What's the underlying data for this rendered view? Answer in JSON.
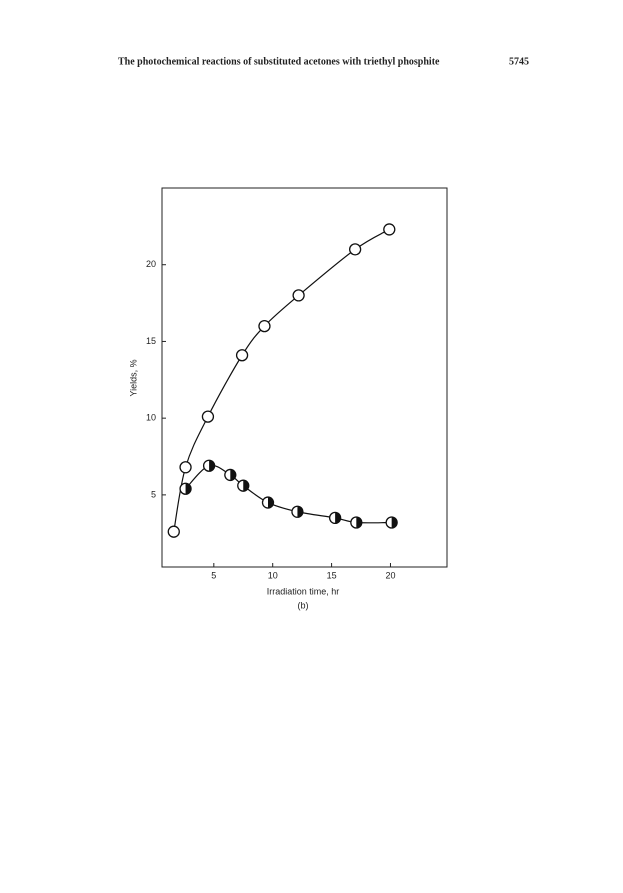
{
  "header": {
    "title": "The photochemical reactions of substituted acetones with triethyl phosphite",
    "page": "5745"
  },
  "chart_data": {
    "type": "line",
    "xlabel": "Irradiation time, hr",
    "ylabel": "Yields, %",
    "caption": "(b)",
    "xlim": [
      0.6,
      24.8
    ],
    "ylim": [
      0.3,
      25
    ],
    "xticks": [
      5,
      10,
      15,
      20
    ],
    "yticks": [
      5,
      10,
      15,
      20
    ],
    "series": [
      {
        "color": "#111111",
        "marker": "open",
        "x": [
          1.6,
          2.6,
          4.5,
          7.4,
          9.3,
          12.2,
          17.0,
          19.9
        ],
        "values": [
          2.6,
          6.8,
          10.1,
          14.1,
          16.0,
          18.0,
          21.0,
          22.3
        ]
      },
      {
        "color": "#111111",
        "marker": "half-filled",
        "x": [
          2.6,
          4.6,
          6.4,
          7.5,
          9.6,
          12.1,
          15.3,
          17.1,
          20.1
        ],
        "values": [
          5.4,
          6.9,
          6.3,
          5.6,
          4.5,
          3.9,
          3.5,
          3.2,
          3.2
        ]
      }
    ]
  }
}
